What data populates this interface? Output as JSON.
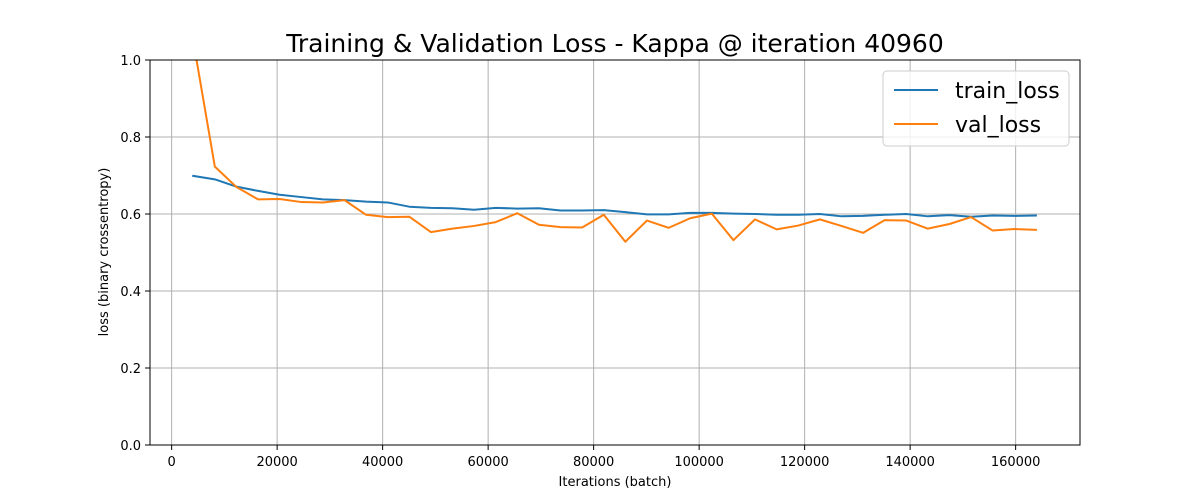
{
  "chart_data": {
    "type": "line",
    "title": "Training & Validation Loss - Kappa @ iteration 40960",
    "xlabel": "Iterations (batch)",
    "ylabel": "loss (binary crossentropy)",
    "xlim": [
      -4100,
      172200
    ],
    "ylim": [
      0.0,
      1.0
    ],
    "xticks": [
      0,
      20000,
      40000,
      60000,
      80000,
      100000,
      120000,
      140000,
      160000
    ],
    "yticks": [
      0.0,
      0.2,
      0.4,
      0.6,
      0.8,
      1.0
    ],
    "grid": true,
    "legend_position": "top-right",
    "x": [
      4096,
      8192,
      12288,
      16384,
      20480,
      24576,
      28672,
      32768,
      36864,
      40960,
      45056,
      49152,
      53248,
      57344,
      61440,
      65536,
      69632,
      73728,
      77824,
      81920,
      86016,
      90112,
      94208,
      98304,
      102400,
      106496,
      110592,
      114688,
      118784,
      122880,
      126976,
      131072,
      135168,
      139264,
      143360,
      147456,
      151552,
      155648,
      159744,
      163840
    ],
    "series": [
      {
        "name": "train_loss",
        "color": "#1f77b4",
        "values": [
          0.699,
          0.69,
          0.671,
          0.66,
          0.65,
          0.644,
          0.638,
          0.636,
          0.632,
          0.63,
          0.619,
          0.616,
          0.615,
          0.611,
          0.616,
          0.614,
          0.615,
          0.609,
          0.609,
          0.61,
          0.605,
          0.599,
          0.599,
          0.603,
          0.603,
          0.601,
          0.6,
          0.598,
          0.598,
          0.6,
          0.594,
          0.595,
          0.598,
          0.6,
          0.594,
          0.597,
          0.593,
          0.596,
          0.595,
          0.596
        ]
      },
      {
        "name": "val_loss",
        "color": "#ff7f0e",
        "values": [
          1.05,
          0.723,
          0.67,
          0.638,
          0.639,
          0.631,
          0.63,
          0.636,
          0.598,
          0.592,
          0.593,
          0.553,
          0.562,
          0.569,
          0.579,
          0.602,
          0.572,
          0.566,
          0.565,
          0.598,
          0.528,
          0.583,
          0.564,
          0.589,
          0.601,
          0.532,
          0.586,
          0.56,
          0.57,
          0.586,
          0.569,
          0.551,
          0.584,
          0.583,
          0.562,
          0.574,
          0.592,
          0.557,
          0.561,
          0.559
        ]
      }
    ]
  }
}
